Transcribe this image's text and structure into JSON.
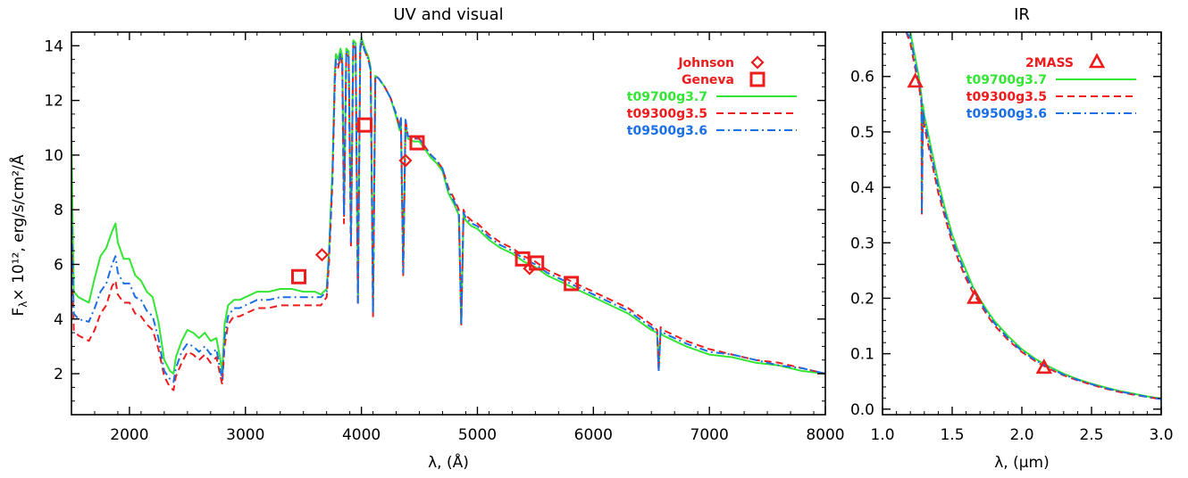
{
  "colors": {
    "green": "#33e633",
    "red": "#ee1c1c",
    "blue": "#1a6fe6",
    "axis": "#000000"
  },
  "shared_ylabel": "F",
  "ylabel_sub": "λ",
  "ylabel_unit": "× 10¹², erg/s/cm²/Å",
  "chart_data": [
    {
      "type": "line",
      "title": "UV and visual",
      "xlabel": "λ, (Å)",
      "xlim": [
        1500,
        8000
      ],
      "ylim": [
        0.5,
        14.5
      ],
      "xticks": [
        2000,
        3000,
        4000,
        5000,
        6000,
        7000,
        8000
      ],
      "xtick_labels": [
        "2000",
        "3000",
        "4000",
        "5000",
        "6000",
        "7000",
        "8000"
      ],
      "yticks": [
        2,
        4,
        6,
        8,
        10,
        12,
        14
      ],
      "ytick_labels": [
        "2",
        "4",
        "6",
        "8",
        "10",
        "12",
        "14"
      ],
      "legend_position": "top-right",
      "series": [
        {
          "name": "t09700g3.7",
          "style": "solid",
          "color": "#33e633",
          "legend_name_color": "#33e633",
          "x": [
            1500,
            1520,
            1560,
            1650,
            1700,
            1750,
            1800,
            1850,
            1880,
            1900,
            1950,
            2000,
            2050,
            2100,
            2150,
            2200,
            2250,
            2300,
            2350,
            2380,
            2400,
            2450,
            2500,
            2550,
            2600,
            2650,
            2700,
            2750,
            2780,
            2800,
            2820,
            2850,
            2900,
            2950,
            3000,
            3050,
            3100,
            3200,
            3300,
            3400,
            3500,
            3600,
            3650,
            3700,
            3720,
            3750,
            3770,
            3780,
            3800,
            3820,
            3835,
            3850,
            3870,
            3890,
            3910,
            3930,
            3950,
            3970,
            3990,
            4000,
            4030,
            4060,
            4080,
            4100,
            4120,
            4150,
            4200,
            4250,
            4300,
            4330,
            4340,
            4360,
            4380,
            4400,
            4450,
            4500,
            4550,
            4600,
            4650,
            4700,
            4750,
            4800,
            4840,
            4861,
            4880,
            4900,
            4950,
            5000,
            5100,
            5200,
            5300,
            5400,
            5500,
            5600,
            5700,
            5800,
            5900,
            6000,
            6100,
            6200,
            6300,
            6400,
            6500,
            6550,
            6563,
            6580,
            6600,
            6700,
            6800,
            7000,
            7200,
            7400,
            7600,
            7800,
            8000
          ],
          "y": [
            10.5,
            5.0,
            4.8,
            4.6,
            5.5,
            6.3,
            6.6,
            7.2,
            7.5,
            6.8,
            6.2,
            6.2,
            5.6,
            5.4,
            5.0,
            4.8,
            3.9,
            2.5,
            2.1,
            2.0,
            2.6,
            3.2,
            3.6,
            3.5,
            3.3,
            3.5,
            3.2,
            3.3,
            2.6,
            2.1,
            3.8,
            4.5,
            4.7,
            4.7,
            4.8,
            4.9,
            5.0,
            5.0,
            5.1,
            5.1,
            5.0,
            5.0,
            4.9,
            5.1,
            6.5,
            9.5,
            13.0,
            13.7,
            13.5,
            13.9,
            13.6,
            8.0,
            13.9,
            13.8,
            7.0,
            14.2,
            14.1,
            4.8,
            14.0,
            14.3,
            13.9,
            13.6,
            13.2,
            4.3,
            12.9,
            12.8,
            12.5,
            12.1,
            11.4,
            10.9,
            11.3,
            5.8,
            11.2,
            10.6,
            10.5,
            10.5,
            10.2,
            9.9,
            9.7,
            9.4,
            8.6,
            8.2,
            7.8,
            3.8,
            7.8,
            7.6,
            7.4,
            7.3,
            6.9,
            6.6,
            6.4,
            6.1,
            5.9,
            5.6,
            5.4,
            5.2,
            5.0,
            4.8,
            4.6,
            4.4,
            4.2,
            3.9,
            3.6,
            3.5,
            2.2,
            3.5,
            3.4,
            3.2,
            3.0,
            2.7,
            2.6,
            2.4,
            2.3,
            2.1,
            2.0
          ]
        },
        {
          "name": "t09300g3.5",
          "style": "dashed",
          "color": "#ee1c1c",
          "legend_name_color": "#ee1c1c",
          "x": [
            1500,
            1520,
            1560,
            1650,
            1700,
            1750,
            1800,
            1850,
            1880,
            1900,
            1950,
            2000,
            2050,
            2100,
            2150,
            2200,
            2250,
            2300,
            2350,
            2380,
            2400,
            2450,
            2500,
            2550,
            2600,
            2650,
            2700,
            2750,
            2780,
            2800,
            2820,
            2850,
            2900,
            2950,
            3000,
            3050,
            3100,
            3200,
            3300,
            3400,
            3500,
            3600,
            3650,
            3700,
            3720,
            3750,
            3770,
            3780,
            3800,
            3820,
            3835,
            3850,
            3870,
            3890,
            3910,
            3930,
            3950,
            3970,
            3990,
            4000,
            4030,
            4060,
            4080,
            4100,
            4120,
            4150,
            4200,
            4250,
            4300,
            4330,
            4340,
            4360,
            4380,
            4400,
            4450,
            4500,
            4550,
            4600,
            4650,
            4700,
            4750,
            4800,
            4840,
            4861,
            4880,
            4900,
            4950,
            5000,
            5100,
            5200,
            5300,
            5400,
            5500,
            5600,
            5700,
            5800,
            5900,
            6000,
            6100,
            6200,
            6300,
            6400,
            6500,
            6550,
            6563,
            6580,
            6600,
            6700,
            6800,
            7000,
            7200,
            7400,
            7600,
            7800,
            8000
          ],
          "y": [
            6.8,
            3.6,
            3.4,
            3.2,
            3.6,
            4.2,
            4.5,
            5.2,
            5.4,
            4.9,
            4.6,
            4.6,
            4.2,
            4.1,
            3.8,
            3.6,
            2.9,
            1.9,
            1.5,
            1.4,
            1.9,
            2.4,
            2.8,
            2.7,
            2.5,
            2.7,
            2.4,
            2.6,
            2.0,
            1.6,
            3.0,
            3.8,
            4.1,
            4.1,
            4.2,
            4.3,
            4.4,
            4.4,
            4.5,
            4.5,
            4.5,
            4.5,
            4.5,
            4.8,
            6.0,
            9.0,
            12.6,
            13.4,
            13.2,
            13.6,
            13.3,
            7.5,
            13.7,
            13.6,
            6.6,
            14.0,
            13.9,
            4.5,
            13.8,
            14.1,
            13.8,
            13.5,
            13.1,
            4.1,
            12.9,
            12.8,
            12.5,
            12.1,
            11.5,
            11.0,
            11.4,
            5.6,
            11.3,
            10.7,
            10.6,
            10.6,
            10.3,
            10.0,
            9.8,
            9.5,
            8.8,
            8.4,
            8.0,
            3.8,
            8.0,
            7.8,
            7.6,
            7.5,
            7.1,
            6.8,
            6.6,
            6.3,
            6.1,
            5.8,
            5.6,
            5.4,
            5.2,
            5.0,
            4.8,
            4.6,
            4.4,
            4.1,
            3.8,
            3.6,
            2.1,
            3.7,
            3.6,
            3.4,
            3.2,
            2.9,
            2.7,
            2.5,
            2.4,
            2.2,
            2.0
          ]
        },
        {
          "name": "t09500g3.6",
          "style": "dashdot",
          "color": "#1a6fe6",
          "legend_name_color": "#1a6fe6",
          "x": [
            1500,
            1520,
            1560,
            1650,
            1700,
            1750,
            1800,
            1850,
            1880,
            1900,
            1950,
            2000,
            2050,
            2100,
            2150,
            2200,
            2250,
            2300,
            2350,
            2380,
            2400,
            2450,
            2500,
            2550,
            2600,
            2650,
            2700,
            2750,
            2780,
            2800,
            2820,
            2850,
            2900,
            2950,
            3000,
            3050,
            3100,
            3200,
            3300,
            3400,
            3500,
            3600,
            3650,
            3700,
            3720,
            3750,
            3770,
            3780,
            3800,
            3820,
            3835,
            3850,
            3870,
            3890,
            3910,
            3930,
            3950,
            3970,
            3990,
            4000,
            4030,
            4060,
            4080,
            4100,
            4120,
            4150,
            4200,
            4250,
            4300,
            4330,
            4340,
            4360,
            4380,
            4400,
            4450,
            4500,
            4550,
            4600,
            4650,
            4700,
            4750,
            4800,
            4840,
            4861,
            4880,
            4900,
            4950,
            5000,
            5100,
            5200,
            5300,
            5400,
            5500,
            5600,
            5700,
            5800,
            5900,
            6000,
            6100,
            6200,
            6300,
            6400,
            6500,
            6550,
            6563,
            6580,
            6600,
            6700,
            6800,
            7000,
            7200,
            7400,
            7600,
            7800,
            8000
          ],
          "y": [
            8.0,
            4.2,
            4.0,
            3.9,
            4.4,
            5.0,
            5.3,
            6.0,
            6.3,
            5.7,
            5.3,
            5.3,
            4.8,
            4.7,
            4.3,
            4.1,
            3.3,
            2.1,
            1.8,
            1.7,
            2.2,
            2.8,
            3.1,
            3.0,
            2.8,
            3.0,
            2.7,
            2.9,
            2.2,
            1.8,
            3.3,
            4.1,
            4.4,
            4.4,
            4.5,
            4.6,
            4.7,
            4.7,
            4.8,
            4.8,
            4.8,
            4.8,
            4.8,
            5.0,
            6.3,
            9.2,
            12.8,
            13.5,
            13.3,
            13.7,
            13.5,
            7.8,
            13.8,
            13.7,
            6.8,
            14.1,
            14.0,
            4.6,
            13.9,
            14.2,
            13.8,
            13.5,
            13.1,
            4.2,
            12.9,
            12.8,
            12.5,
            12.1,
            11.5,
            11.0,
            11.4,
            5.7,
            11.3,
            10.7,
            10.6,
            10.6,
            10.3,
            10.0,
            9.8,
            9.5,
            8.7,
            8.3,
            7.9,
            3.8,
            7.9,
            7.7,
            7.5,
            7.4,
            7.0,
            6.7,
            6.5,
            6.2,
            6.0,
            5.7,
            5.5,
            5.3,
            5.1,
            4.9,
            4.7,
            4.5,
            4.3,
            4.0,
            3.7,
            3.5,
            2.1,
            3.6,
            3.5,
            3.3,
            3.1,
            2.8,
            2.7,
            2.5,
            2.3,
            2.2,
            2.0
          ]
        }
      ],
      "markers": [
        {
          "name": "Johnson",
          "shape": "diamond",
          "color": "#ee1c1c",
          "legend_name_color": "#ee1c1c",
          "points": [
            [
              3660,
              6.35
            ],
            [
              4380,
              9.8
            ],
            [
              5450,
              5.85
            ]
          ]
        },
        {
          "name": "Geneva",
          "shape": "square",
          "color": "#ee1c1c",
          "legend_name_color": "#ee1c1c",
          "points": [
            [
              3460,
              5.55
            ],
            [
              4030,
              11.1
            ],
            [
              4480,
              10.45
            ],
            [
              5390,
              6.2
            ],
            [
              5510,
              6.05
            ],
            [
              5810,
              5.3
            ]
          ]
        }
      ]
    },
    {
      "type": "line",
      "title": "IR",
      "xlabel": "λ, (μm)",
      "xlim": [
        1.0,
        3.0
      ],
      "ylim": [
        -0.01,
        0.68
      ],
      "xticks": [
        1.0,
        1.5,
        2.0,
        2.5,
        3.0
      ],
      "xtick_labels": [
        "1.0",
        "1.5",
        "2.0",
        "2.5",
        "3.0"
      ],
      "yticks": [
        0.0,
        0.1,
        0.2,
        0.3,
        0.4,
        0.5,
        0.6
      ],
      "ytick_labels": [
        "0.0",
        "0.1",
        "0.2",
        "0.3",
        "0.4",
        "0.5",
        "0.6"
      ],
      "legend_position": "top-right",
      "series": [
        {
          "name": "t09700g3.7",
          "style": "solid",
          "color": "#33e633",
          "legend_name_color": "#33e633",
          "x": [
            1.17,
            1.2,
            1.23,
            1.26,
            1.28,
            1.282,
            1.29,
            1.3,
            1.35,
            1.4,
            1.45,
            1.5,
            1.55,
            1.6,
            1.65,
            1.7,
            1.75,
            1.8,
            1.9,
            2.0,
            2.1,
            2.2,
            2.3,
            2.4,
            2.5,
            2.6,
            2.7,
            2.8,
            2.9,
            3.0
          ],
          "y": [
            0.68,
            0.68,
            0.64,
            0.6,
            0.565,
            0.36,
            0.55,
            0.53,
            0.47,
            0.41,
            0.36,
            0.315,
            0.28,
            0.25,
            0.22,
            0.198,
            0.178,
            0.16,
            0.132,
            0.108,
            0.09,
            0.076,
            0.064,
            0.054,
            0.046,
            0.039,
            0.033,
            0.028,
            0.023,
            0.019
          ]
        },
        {
          "name": "t09300g3.5",
          "style": "dashed",
          "color": "#ee1c1c",
          "legend_name_color": "#ee1c1c",
          "x": [
            1.17,
            1.2,
            1.23,
            1.26,
            1.28,
            1.282,
            1.29,
            1.3,
            1.35,
            1.4,
            1.45,
            1.5,
            1.55,
            1.6,
            1.65,
            1.7,
            1.75,
            1.8,
            1.9,
            2.0,
            2.1,
            2.2,
            2.3,
            2.4,
            2.5,
            2.6,
            2.7,
            2.8,
            2.9,
            3.0
          ],
          "y": [
            0.68,
            0.66,
            0.62,
            0.585,
            0.55,
            0.35,
            0.53,
            0.51,
            0.45,
            0.39,
            0.345,
            0.3,
            0.265,
            0.235,
            0.21,
            0.19,
            0.17,
            0.152,
            0.125,
            0.103,
            0.086,
            0.072,
            0.061,
            0.052,
            0.044,
            0.037,
            0.031,
            0.026,
            0.022,
            0.018
          ]
        },
        {
          "name": "t09500g3.6",
          "style": "dashdot",
          "color": "#1a6fe6",
          "legend_name_color": "#1a6fe6",
          "x": [
            1.17,
            1.2,
            1.23,
            1.26,
            1.28,
            1.282,
            1.29,
            1.3,
            1.35,
            1.4,
            1.45,
            1.5,
            1.55,
            1.6,
            1.65,
            1.7,
            1.75,
            1.8,
            1.9,
            2.0,
            2.1,
            2.2,
            2.3,
            2.4,
            2.5,
            2.6,
            2.7,
            2.8,
            2.9,
            3.0
          ],
          "y": [
            0.68,
            0.67,
            0.63,
            0.59,
            0.558,
            0.355,
            0.54,
            0.52,
            0.46,
            0.4,
            0.352,
            0.307,
            0.272,
            0.242,
            0.215,
            0.194,
            0.174,
            0.156,
            0.128,
            0.105,
            0.088,
            0.074,
            0.062,
            0.053,
            0.045,
            0.038,
            0.032,
            0.027,
            0.022,
            0.018
          ]
        }
      ],
      "markers": [
        {
          "name": "2MASS",
          "shape": "triangle",
          "color": "#ee1c1c",
          "legend_name_color": "#ee1c1c",
          "points": [
            [
              1.235,
              0.59
            ],
            [
              1.662,
              0.2
            ],
            [
              2.159,
              0.074
            ]
          ]
        }
      ]
    }
  ]
}
